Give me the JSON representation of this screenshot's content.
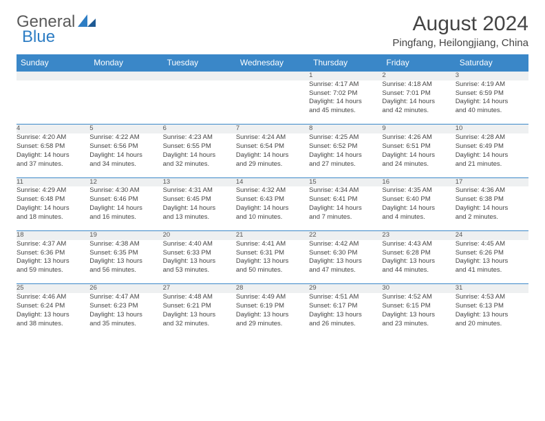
{
  "brand": {
    "part1": "General",
    "part2": "Blue",
    "color1": "#5a5a5a",
    "color2": "#2d7dc4"
  },
  "title": "August 2024",
  "location": "Pingfang, Heilongjiang, China",
  "colors": {
    "header_bg": "#3a87c8",
    "header_text": "#ffffff",
    "daynum_bg": "#eef0f1",
    "border": "#3a87c8",
    "text": "#444444"
  },
  "weekdays": [
    "Sunday",
    "Monday",
    "Tuesday",
    "Wednesday",
    "Thursday",
    "Friday",
    "Saturday"
  ],
  "days": {
    "1": {
      "sunrise": "Sunrise: 4:17 AM",
      "sunset": "Sunset: 7:02 PM",
      "daylight1": "Daylight: 14 hours",
      "daylight2": "and 45 minutes."
    },
    "2": {
      "sunrise": "Sunrise: 4:18 AM",
      "sunset": "Sunset: 7:01 PM",
      "daylight1": "Daylight: 14 hours",
      "daylight2": "and 42 minutes."
    },
    "3": {
      "sunrise": "Sunrise: 4:19 AM",
      "sunset": "Sunset: 6:59 PM",
      "daylight1": "Daylight: 14 hours",
      "daylight2": "and 40 minutes."
    },
    "4": {
      "sunrise": "Sunrise: 4:20 AM",
      "sunset": "Sunset: 6:58 PM",
      "daylight1": "Daylight: 14 hours",
      "daylight2": "and 37 minutes."
    },
    "5": {
      "sunrise": "Sunrise: 4:22 AM",
      "sunset": "Sunset: 6:56 PM",
      "daylight1": "Daylight: 14 hours",
      "daylight2": "and 34 minutes."
    },
    "6": {
      "sunrise": "Sunrise: 4:23 AM",
      "sunset": "Sunset: 6:55 PM",
      "daylight1": "Daylight: 14 hours",
      "daylight2": "and 32 minutes."
    },
    "7": {
      "sunrise": "Sunrise: 4:24 AM",
      "sunset": "Sunset: 6:54 PM",
      "daylight1": "Daylight: 14 hours",
      "daylight2": "and 29 minutes."
    },
    "8": {
      "sunrise": "Sunrise: 4:25 AM",
      "sunset": "Sunset: 6:52 PM",
      "daylight1": "Daylight: 14 hours",
      "daylight2": "and 27 minutes."
    },
    "9": {
      "sunrise": "Sunrise: 4:26 AM",
      "sunset": "Sunset: 6:51 PM",
      "daylight1": "Daylight: 14 hours",
      "daylight2": "and 24 minutes."
    },
    "10": {
      "sunrise": "Sunrise: 4:28 AM",
      "sunset": "Sunset: 6:49 PM",
      "daylight1": "Daylight: 14 hours",
      "daylight2": "and 21 minutes."
    },
    "11": {
      "sunrise": "Sunrise: 4:29 AM",
      "sunset": "Sunset: 6:48 PM",
      "daylight1": "Daylight: 14 hours",
      "daylight2": "and 18 minutes."
    },
    "12": {
      "sunrise": "Sunrise: 4:30 AM",
      "sunset": "Sunset: 6:46 PM",
      "daylight1": "Daylight: 14 hours",
      "daylight2": "and 16 minutes."
    },
    "13": {
      "sunrise": "Sunrise: 4:31 AM",
      "sunset": "Sunset: 6:45 PM",
      "daylight1": "Daylight: 14 hours",
      "daylight2": "and 13 minutes."
    },
    "14": {
      "sunrise": "Sunrise: 4:32 AM",
      "sunset": "Sunset: 6:43 PM",
      "daylight1": "Daylight: 14 hours",
      "daylight2": "and 10 minutes."
    },
    "15": {
      "sunrise": "Sunrise: 4:34 AM",
      "sunset": "Sunset: 6:41 PM",
      "daylight1": "Daylight: 14 hours",
      "daylight2": "and 7 minutes."
    },
    "16": {
      "sunrise": "Sunrise: 4:35 AM",
      "sunset": "Sunset: 6:40 PM",
      "daylight1": "Daylight: 14 hours",
      "daylight2": "and 4 minutes."
    },
    "17": {
      "sunrise": "Sunrise: 4:36 AM",
      "sunset": "Sunset: 6:38 PM",
      "daylight1": "Daylight: 14 hours",
      "daylight2": "and 2 minutes."
    },
    "18": {
      "sunrise": "Sunrise: 4:37 AM",
      "sunset": "Sunset: 6:36 PM",
      "daylight1": "Daylight: 13 hours",
      "daylight2": "and 59 minutes."
    },
    "19": {
      "sunrise": "Sunrise: 4:38 AM",
      "sunset": "Sunset: 6:35 PM",
      "daylight1": "Daylight: 13 hours",
      "daylight2": "and 56 minutes."
    },
    "20": {
      "sunrise": "Sunrise: 4:40 AM",
      "sunset": "Sunset: 6:33 PM",
      "daylight1": "Daylight: 13 hours",
      "daylight2": "and 53 minutes."
    },
    "21": {
      "sunrise": "Sunrise: 4:41 AM",
      "sunset": "Sunset: 6:31 PM",
      "daylight1": "Daylight: 13 hours",
      "daylight2": "and 50 minutes."
    },
    "22": {
      "sunrise": "Sunrise: 4:42 AM",
      "sunset": "Sunset: 6:30 PM",
      "daylight1": "Daylight: 13 hours",
      "daylight2": "and 47 minutes."
    },
    "23": {
      "sunrise": "Sunrise: 4:43 AM",
      "sunset": "Sunset: 6:28 PM",
      "daylight1": "Daylight: 13 hours",
      "daylight2": "and 44 minutes."
    },
    "24": {
      "sunrise": "Sunrise: 4:45 AM",
      "sunset": "Sunset: 6:26 PM",
      "daylight1": "Daylight: 13 hours",
      "daylight2": "and 41 minutes."
    },
    "25": {
      "sunrise": "Sunrise: 4:46 AM",
      "sunset": "Sunset: 6:24 PM",
      "daylight1": "Daylight: 13 hours",
      "daylight2": "and 38 minutes."
    },
    "26": {
      "sunrise": "Sunrise: 4:47 AM",
      "sunset": "Sunset: 6:23 PM",
      "daylight1": "Daylight: 13 hours",
      "daylight2": "and 35 minutes."
    },
    "27": {
      "sunrise": "Sunrise: 4:48 AM",
      "sunset": "Sunset: 6:21 PM",
      "daylight1": "Daylight: 13 hours",
      "daylight2": "and 32 minutes."
    },
    "28": {
      "sunrise": "Sunrise: 4:49 AM",
      "sunset": "Sunset: 6:19 PM",
      "daylight1": "Daylight: 13 hours",
      "daylight2": "and 29 minutes."
    },
    "29": {
      "sunrise": "Sunrise: 4:51 AM",
      "sunset": "Sunset: 6:17 PM",
      "daylight1": "Daylight: 13 hours",
      "daylight2": "and 26 minutes."
    },
    "30": {
      "sunrise": "Sunrise: 4:52 AM",
      "sunset": "Sunset: 6:15 PM",
      "daylight1": "Daylight: 13 hours",
      "daylight2": "and 23 minutes."
    },
    "31": {
      "sunrise": "Sunrise: 4:53 AM",
      "sunset": "Sunset: 6:13 PM",
      "daylight1": "Daylight: 13 hours",
      "daylight2": "and 20 minutes."
    }
  },
  "grid": [
    [
      null,
      null,
      null,
      null,
      "1",
      "2",
      "3"
    ],
    [
      "4",
      "5",
      "6",
      "7",
      "8",
      "9",
      "10"
    ],
    [
      "11",
      "12",
      "13",
      "14",
      "15",
      "16",
      "17"
    ],
    [
      "18",
      "19",
      "20",
      "21",
      "22",
      "23",
      "24"
    ],
    [
      "25",
      "26",
      "27",
      "28",
      "29",
      "30",
      "31"
    ]
  ]
}
